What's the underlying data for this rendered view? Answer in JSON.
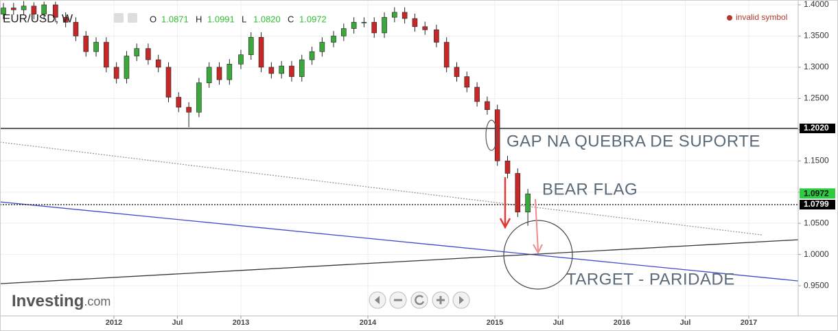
{
  "chart_data": {
    "type": "candlestick",
    "title": "EUR/USD, W",
    "ohlc": [
      {
        "label": "O",
        "text": "1.0871"
      },
      {
        "label": "H",
        "text": "1.0991"
      },
      {
        "label": "L",
        "text": "1.0820"
      },
      {
        "label": "C",
        "text": "1.0972"
      }
    ],
    "status": "invalid symbol",
    "watermark": [
      "Investing",
      ".com"
    ],
    "x": [
      2011.13,
      2011.21,
      2011.29,
      2011.37,
      2011.45,
      2011.54,
      2011.62,
      2011.7,
      2011.78,
      2011.86,
      2011.94,
      2012.02,
      2012.1,
      2012.18,
      2012.27,
      2012.35,
      2012.43,
      2012.51,
      2012.59,
      2012.67,
      2012.75,
      2012.83,
      2012.91,
      2013.0,
      2013.08,
      2013.16,
      2013.24,
      2013.32,
      2013.4,
      2013.48,
      2013.56,
      2013.64,
      2013.73,
      2013.81,
      2013.89,
      2013.97,
      2014.05,
      2014.13,
      2014.21,
      2014.29,
      2014.37,
      2014.45,
      2014.54,
      2014.62,
      2014.7,
      2014.78,
      2014.86,
      2014.94,
      2015.02,
      2015.1,
      2015.18,
      2015.26
    ],
    "open": [
      1.385,
      1.395,
      1.392,
      1.398,
      1.385,
      1.4,
      1.38,
      1.372,
      1.35,
      1.325,
      1.34,
      1.3,
      1.282,
      1.318,
      1.33,
      1.312,
      1.3,
      1.252,
      1.236,
      1.228,
      1.275,
      1.3,
      1.28,
      1.305,
      1.32,
      1.348,
      1.3,
      1.29,
      1.302,
      1.285,
      1.312,
      1.325,
      1.34,
      1.35,
      1.362,
      1.372,
      1.372,
      1.355,
      1.38,
      1.388,
      1.378,
      1.365,
      1.36,
      1.34,
      1.3,
      1.285,
      1.268,
      1.245,
      1.232,
      1.15,
      1.13,
      1.068
    ],
    "high": [
      1.403,
      1.403,
      1.406,
      1.404,
      1.405,
      1.405,
      1.388,
      1.38,
      1.358,
      1.348,
      1.348,
      1.308,
      1.326,
      1.338,
      1.338,
      1.32,
      1.308,
      1.26,
      1.244,
      1.283,
      1.308,
      1.308,
      1.313,
      1.328,
      1.356,
      1.356,
      1.308,
      1.31,
      1.31,
      1.32,
      1.333,
      1.348,
      1.358,
      1.37,
      1.38,
      1.38,
      1.38,
      1.388,
      1.396,
      1.396,
      1.386,
      1.373,
      1.368,
      1.348,
      1.308,
      1.293,
      1.276,
      1.253,
      1.24,
      1.158,
      1.138,
      1.105
    ],
    "low": [
      1.377,
      1.384,
      1.384,
      1.377,
      1.377,
      1.372,
      1.364,
      1.342,
      1.317,
      1.317,
      1.292,
      1.274,
      1.274,
      1.31,
      1.304,
      1.292,
      1.244,
      1.228,
      1.204,
      1.22,
      1.267,
      1.272,
      1.272,
      1.297,
      1.312,
      1.292,
      1.282,
      1.282,
      1.277,
      1.277,
      1.304,
      1.317,
      1.332,
      1.342,
      1.354,
      1.364,
      1.347,
      1.347,
      1.372,
      1.37,
      1.357,
      1.352,
      1.332,
      1.292,
      1.277,
      1.26,
      1.237,
      1.224,
      1.142,
      1.122,
      1.06,
      1.046
    ],
    "close": [
      1.395,
      1.392,
      1.398,
      1.385,
      1.4,
      1.38,
      1.372,
      1.35,
      1.325,
      1.34,
      1.3,
      1.282,
      1.318,
      1.33,
      1.312,
      1.3,
      1.252,
      1.236,
      1.228,
      1.275,
      1.3,
      1.28,
      1.305,
      1.32,
      1.348,
      1.3,
      1.29,
      1.302,
      1.285,
      1.312,
      1.325,
      1.34,
      1.35,
      1.362,
      1.372,
      1.372,
      1.355,
      1.38,
      1.388,
      1.378,
      1.365,
      1.36,
      1.34,
      1.3,
      1.285,
      1.268,
      1.245,
      1.232,
      1.15,
      1.13,
      1.068,
      1.0972
    ],
    "up_color": "#3aa83a",
    "down_color": "#c62828",
    "xlim": [
      2011.103,
      2017.389
    ],
    "ylim": [
      0.9017,
      1.4077
    ],
    "xticks": [
      2012,
      {
        "value": 2012.5,
        "label": "Jul"
      },
      2013,
      2014,
      2015,
      {
        "value": 2015.5,
        "label": "Jul"
      },
      2016,
      {
        "value": 2016.5,
        "label": "Jul"
      },
      2017
    ],
    "yticks": [
      {
        "value": 0.95,
        "label": "0.9500"
      },
      {
        "value": 1.0,
        "label": "1.0000"
      },
      {
        "value": 1.05,
        "label": "1.0500"
      },
      {
        "value": 1.1,
        "label": "1.1000"
      },
      {
        "value": 1.15,
        "label": "1.1500"
      },
      {
        "value": 1.2,
        "label": "1.2000"
      },
      {
        "value": 1.25,
        "label": "1.2500"
      },
      {
        "value": 1.3,
        "label": "1.3000"
      },
      {
        "value": 1.35,
        "label": "1.3500"
      },
      {
        "value": 1.4,
        "label": "1.4000"
      }
    ],
    "grid": true,
    "hlines": [
      {
        "value": 1.202,
        "label": "1.2020",
        "style": "solid"
      },
      {
        "value": 1.0799,
        "label": "1.0799",
        "style": "dotted"
      }
    ],
    "last_price": {
      "value": 1.0972,
      "label": "1.0972",
      "color": "#2ecc40"
    },
    "trendlines": [
      {
        "x": [
          2011.103,
          2017.389
        ],
        "y": [
          1.0843,
          0.9577
        ],
        "color": "#3f48cc",
        "style": "solid"
      },
      {
        "x": [
          2011.103,
          2017.389
        ],
        "y": [
          0.9533,
          1.0237
        ],
        "color": "#333333",
        "style": "solid"
      },
      {
        "x": [
          2011.103,
          2017.103
        ],
        "y": [
          1.18,
          1.0314
        ],
        "color": "#999999",
        "style": "dotted"
      }
    ],
    "annotations": [
      "GAP NA QUEBRA DE SUPORTE",
      "BEAR FLAG",
      "TARGET - PARIDADE"
    ]
  }
}
